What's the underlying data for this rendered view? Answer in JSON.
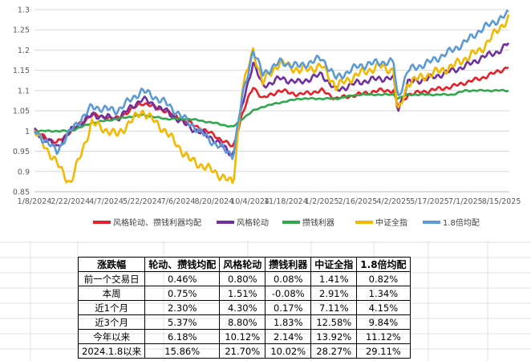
{
  "chart_data": {
    "type": "line",
    "ylim": [
      0.85,
      1.3
    ],
    "yticks": [
      "0.85",
      "0.9",
      "0.95",
      "1",
      "1.05",
      "1.1",
      "1.15",
      "1.2",
      "1.25",
      "1.3"
    ],
    "xtick_labels": [
      "1/8/2024",
      "2/22/2024",
      "4/7/2024",
      "5/22/2024",
      "7/6/2024",
      "8/20/2024",
      "10/4/2024",
      "11/18/2024",
      "1/2/2025",
      "2/16/2025",
      "4/2/2025",
      "5/17/2025",
      "7/1/2025",
      "8/15/2025"
    ],
    "grid": "horizontal",
    "legend_position": "bottom",
    "x": [
      "2024-01-08",
      "2024-02-05",
      "2024-02-22",
      "2024-03-20",
      "2024-04-20",
      "2024-05-22",
      "2024-06-20",
      "2024-07-20",
      "2024-08-20",
      "2024-09-13",
      "2024-09-24",
      "2024-10-08",
      "2024-10-20",
      "2024-11-10",
      "2024-12-05",
      "2025-01-02",
      "2025-01-20",
      "2025-02-16",
      "2025-03-15",
      "2025-04-02",
      "2025-04-07",
      "2025-04-20",
      "2025-05-17",
      "2025-06-15",
      "2025-07-01",
      "2025-07-20",
      "2025-08-15",
      "2025-08-25"
    ],
    "series": [
      {
        "name": "风格轮动、攒钱利器均配",
        "color": "#e8202a",
        "values": [
          1.0,
          0.97,
          1.0,
          1.04,
          1.03,
          1.07,
          1.05,
          1.02,
          0.99,
          0.96,
          1.04,
          1.11,
          1.08,
          1.1,
          1.09,
          1.1,
          1.08,
          1.09,
          1.1,
          1.1,
          1.06,
          1.09,
          1.1,
          1.11,
          1.12,
          1.13,
          1.15,
          1.16
        ]
      },
      {
        "name": "风格轮动",
        "color": "#7030a0",
        "values": [
          1.0,
          0.96,
          1.0,
          1.04,
          1.03,
          1.08,
          1.05,
          1.01,
          0.98,
          0.94,
          1.06,
          1.17,
          1.11,
          1.13,
          1.12,
          1.14,
          1.1,
          1.12,
          1.13,
          1.13,
          1.05,
          1.12,
          1.13,
          1.15,
          1.16,
          1.18,
          1.2,
          1.22
        ]
      },
      {
        "name": "攒钱利器",
        "color": "#2ea84a",
        "values": [
          1.0,
          1.0,
          1.0,
          1.02,
          1.03,
          1.04,
          1.03,
          1.03,
          1.02,
          1.01,
          1.03,
          1.05,
          1.06,
          1.07,
          1.08,
          1.08,
          1.08,
          1.09,
          1.09,
          1.09,
          1.08,
          1.09,
          1.09,
          1.09,
          1.1,
          1.1,
          1.1,
          1.1
        ]
      },
      {
        "name": "中证全指",
        "color": "#f5b800",
        "values": [
          1.0,
          0.92,
          0.87,
          1.02,
          0.99,
          1.05,
          1.0,
          0.93,
          0.9,
          0.87,
          1.1,
          1.2,
          1.12,
          1.17,
          1.15,
          1.16,
          1.11,
          1.14,
          1.16,
          1.15,
          1.04,
          1.12,
          1.14,
          1.16,
          1.18,
          1.2,
          1.26,
          1.28
        ]
      },
      {
        "name": "1.8倍均配",
        "color": "#5b9bd5",
        "values": [
          1.0,
          0.95,
          1.0,
          1.06,
          1.05,
          1.1,
          1.07,
          1.02,
          0.97,
          0.94,
          1.08,
          1.2,
          1.14,
          1.17,
          1.16,
          1.18,
          1.13,
          1.16,
          1.17,
          1.17,
          1.08,
          1.15,
          1.17,
          1.2,
          1.22,
          1.25,
          1.28,
          1.29
        ]
      }
    ]
  },
  "table": {
    "headers": [
      "涨跌幅",
      "轮动、攒钱均配",
      "风格轮动",
      "攒钱利器",
      "中证全指",
      "1.8倍均配"
    ],
    "rows": [
      [
        "前一个交易日",
        "0.46%",
        "0.80%",
        "0.08%",
        "1.41%",
        "0.82%"
      ],
      [
        "本周",
        "0.75%",
        "1.51%",
        "-0.08%",
        "2.91%",
        "1.34%"
      ],
      [
        "近1个月",
        "2.30%",
        "4.30%",
        "0.17%",
        "7.11%",
        "4.15%"
      ],
      [
        "近3个月",
        "5.37%",
        "8.80%",
        "1.83%",
        "12.58%",
        "9.84%"
      ],
      [
        "今年以来",
        "6.18%",
        "10.12%",
        "2.14%",
        "13.92%",
        "11.12%"
      ],
      [
        "2024.1.8以来",
        "15.86%",
        "21.70%",
        "10.02%",
        "28.27%",
        "29.11%"
      ]
    ]
  }
}
